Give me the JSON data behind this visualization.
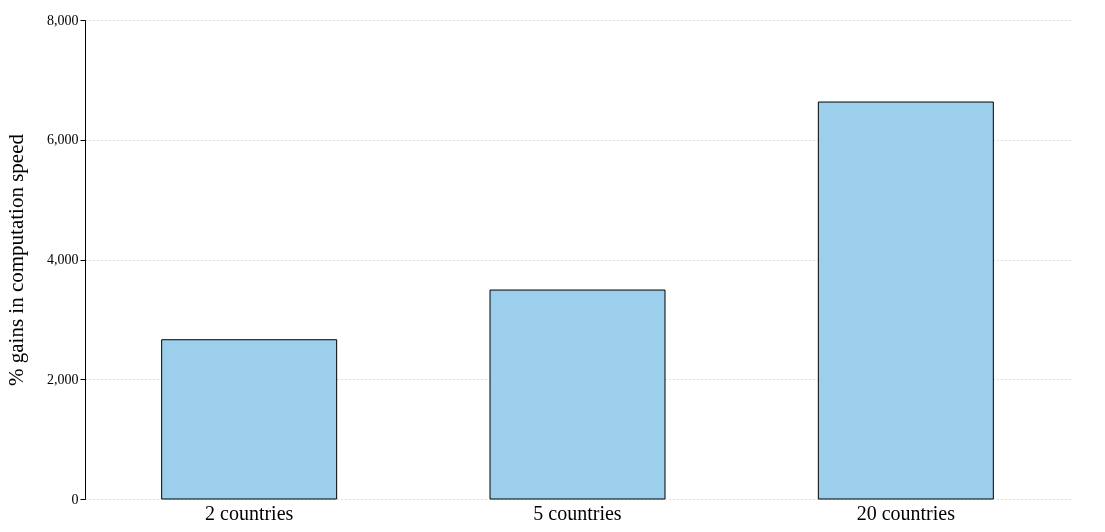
{
  "chart_data": {
    "type": "bar",
    "ylabel": "% gains in computation speed",
    "categories": [
      "2 countries",
      "5 countries",
      "20 countries"
    ],
    "values": [
      2660,
      3490,
      6630
    ],
    "color": "#9ccfec",
    "ylim": [
      0,
      8000
    ],
    "yticks": [
      0,
      {
        "value": 2000,
        "label": "2,000"
      },
      {
        "value": 4000,
        "label": "4,000"
      },
      {
        "value": 6000,
        "label": "6,000"
      },
      {
        "value": 8000,
        "label": "8,000"
      }
    ],
    "grid": "y"
  }
}
